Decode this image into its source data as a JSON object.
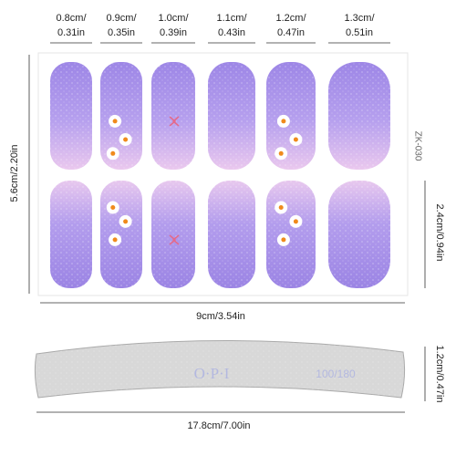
{
  "size_labels": [
    {
      "cm": "0.8cm/",
      "in": "0.31in"
    },
    {
      "cm": "0.9cm/",
      "in": "0.35in"
    },
    {
      "cm": "1.0cm/",
      "in": "0.39in"
    },
    {
      "cm": "1.1cm/",
      "in": "0.43in"
    },
    {
      "cm": "1.2cm/",
      "in": "0.47in"
    },
    {
      "cm": "1.3cm/",
      "in": "0.51in"
    }
  ],
  "sheet": {
    "height": "5.6cm/2.20in",
    "width": "9cm/3.54in",
    "nail_height": "2.4cm/0.94in",
    "code": "ZK-030"
  },
  "file": {
    "brand": "O·P·I",
    "grit": "100/180",
    "width": "17.8cm/7.00in",
    "height": "1.2cm/0.47in"
  }
}
